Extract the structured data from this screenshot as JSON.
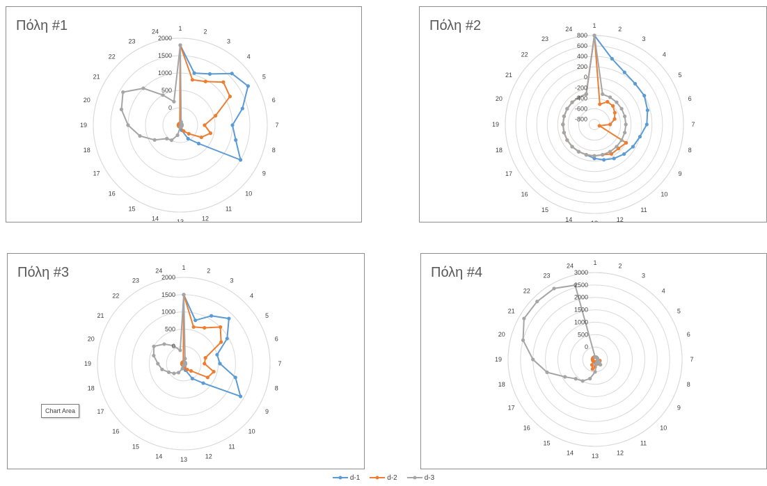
{
  "chart_data": [
    {
      "type": "radar",
      "title": "Πόλη #1",
      "categories": [
        "1",
        "2",
        "3",
        "4",
        "5",
        "6",
        "7",
        "8",
        "9",
        "10",
        "11",
        "12",
        "13",
        "14",
        "15",
        "16",
        "17",
        "18",
        "19",
        "20",
        "21",
        "22",
        "23",
        "24"
      ],
      "r_ticks": [
        "0",
        "500",
        "1000",
        "1500",
        "2000"
      ],
      "rlim": [
        -500,
        2000
      ],
      "grid": true,
      "series": [
        {
          "name": "d-1",
          "color": "#5b9bd5",
          "values": [
            1800,
            1050,
            1200,
            1600,
            1750,
            1350,
            1000,
            1150,
            1500,
            250,
            -50,
            -350,
            -450,
            -450,
            -450,
            -450,
            -450,
            -450,
            -450,
            -450,
            -450,
            -450,
            -450,
            -450
          ]
        },
        {
          "name": "d-2",
          "color": "#ed7d31",
          "values": [
            1800,
            850,
            950,
            1250,
            1150,
            550,
            200,
            400,
            200,
            -150,
            -300,
            -450,
            -450,
            -450,
            -450,
            -450,
            -450,
            -450,
            -450,
            -450,
            -450,
            -450,
            -450,
            -450
          ]
        },
        {
          "name": "d-3",
          "color": "#a5a5a5",
          "values": [
            1800,
            -400,
            -450,
            -450,
            -450,
            -450,
            -450,
            -450,
            -450,
            -450,
            -450,
            -450,
            -450,
            -200,
            0,
            50,
            350,
            700,
            1000,
            1250,
            1400,
            1000,
            500,
            200
          ]
        }
      ]
    },
    {
      "type": "radar",
      "title": "Πόλη #2",
      "categories": [
        "1",
        "2",
        "3",
        "4",
        "5",
        "6",
        "7",
        "8",
        "9",
        "10",
        "11",
        "12",
        "13",
        "14",
        "15",
        "16",
        "17",
        "18",
        "19",
        "20",
        "21",
        "22",
        "23",
        "24"
      ],
      "r_ticks": [
        "-800",
        "-600",
        "-400",
        "-200",
        "0",
        "200",
        "400",
        "600",
        "800"
      ],
      "rlim": [
        -900,
        800
      ],
      "grid": true,
      "series": [
        {
          "name": "d-1",
          "color": "#5b9bd5",
          "values": [
            800,
            400,
            250,
            200,
            200,
            150,
            100,
            0,
            -50,
            -100,
            -150,
            -200,
            -250,
            -300,
            -300,
            -300,
            -300,
            -300,
            -300,
            -300,
            -300,
            -300,
            -300,
            -300
          ]
        },
        {
          "name": "d-2",
          "color": "#ed7d31",
          "values": [
            800,
            -500,
            -400,
            -400,
            -450,
            -500,
            -600,
            -800,
            -200,
            -250,
            -250,
            -300,
            -300,
            -300,
            -300,
            -300,
            -300,
            -300,
            -300,
            -300,
            -300,
            -300,
            -300,
            -300
          ]
        },
        {
          "name": "d-3",
          "color": "#a5a5a5",
          "values": [
            800,
            -300,
            -300,
            -300,
            -300,
            -300,
            -300,
            -300,
            -300,
            -300,
            -300,
            -300,
            -300,
            -300,
            -300,
            -300,
            -300,
            -300,
            -300,
            -300,
            -300,
            -300,
            -300,
            -300
          ]
        }
      ]
    },
    {
      "type": "radar",
      "title": "Πόλη #3",
      "categories": [
        "1",
        "2",
        "3",
        "4",
        "5",
        "6",
        "7",
        "8",
        "9",
        "10",
        "11",
        "12",
        "13",
        "14",
        "15",
        "16",
        "17",
        "18",
        "19",
        "20",
        "21",
        "22",
        "23",
        "24"
      ],
      "r_ticks": [
        "0",
        "500",
        "1000",
        "1500",
        "2000"
      ],
      "rlim": [
        -500,
        2000
      ],
      "grid": true,
      "series": [
        {
          "name": "d-1",
          "color": "#5b9bd5",
          "values": [
            1500,
            800,
            1100,
            1350,
            950,
            500,
            550,
            1050,
            1400,
            300,
            0,
            -300,
            -400,
            -450,
            -450,
            -450,
            -450,
            -450,
            -450,
            -450,
            -450,
            -450,
            -450,
            -450
          ]
        },
        {
          "name": "d-2",
          "color": "#ed7d31",
          "values": [
            1500,
            600,
            700,
            1000,
            750,
            150,
            100,
            400,
            300,
            -200,
            -300,
            -400,
            -450,
            -450,
            -450,
            -450,
            -450,
            -450,
            -450,
            -450,
            -450,
            -450,
            -450,
            -450
          ]
        },
        {
          "name": "d-3",
          "color": "#a5a5a5",
          "values": [
            1500,
            -350,
            -450,
            -450,
            -450,
            -450,
            -450,
            -450,
            -450,
            -450,
            -450,
            -450,
            -450,
            -350,
            -200,
            -100,
            0,
            150,
            250,
            400,
            500,
            300,
            100,
            -100
          ]
        }
      ]
    },
    {
      "type": "radar",
      "title": "Πόλη #4",
      "categories": [
        "1",
        "2",
        "3",
        "4",
        "5",
        "6",
        "7",
        "8",
        "9",
        "10",
        "11",
        "12",
        "13",
        "14",
        "15",
        "16",
        "17",
        "18",
        "19",
        "20",
        "21",
        "22",
        "23",
        "24"
      ],
      "r_ticks": [
        "0",
        "500",
        "1000",
        "1500",
        "2000",
        "2500",
        "3000"
      ],
      "rlim": [
        -500,
        3000
      ],
      "grid": true,
      "series": [
        {
          "name": "d-1",
          "color": "#5b9bd5",
          "values": [
            -400,
            -400,
            -400,
            -400,
            -400,
            -400,
            -400,
            -300,
            -300,
            -200,
            -300,
            -400,
            -200,
            -400,
            -400,
            -400,
            -400,
            -400,
            -400,
            -400,
            -400,
            -400,
            -400,
            -400
          ]
        },
        {
          "name": "d-2",
          "color": "#ed7d31",
          "values": [
            -400,
            -400,
            -400,
            -400,
            -400,
            -400,
            -400,
            -300,
            -300,
            -200,
            -300,
            -400,
            -200,
            -100,
            -250,
            -400,
            -400,
            -400,
            -400,
            -400,
            -400,
            -400,
            -400,
            -400
          ]
        },
        {
          "name": "d-3",
          "color": "#a5a5a5",
          "values": [
            -400,
            -400,
            -400,
            -400,
            -400,
            -400,
            -400,
            -400,
            -300,
            -200,
            -350,
            -300,
            0,
            300,
            500,
            600,
            900,
            1500,
            2000,
            2500,
            2800,
            2800,
            2800,
            2600
          ]
        }
      ]
    }
  ],
  "panels": [
    {
      "title": "Πόλη #1"
    },
    {
      "title": "Πόλη #2"
    },
    {
      "title": "Πόλη #3"
    },
    {
      "title": "Πόλη #4"
    }
  ],
  "tooltip": {
    "text": "Chart Area"
  },
  "legend": [
    {
      "label": "d-1",
      "color": "#5b9bd5"
    },
    {
      "label": "d-2",
      "color": "#ed7d31"
    },
    {
      "label": "d-3",
      "color": "#a5a5a5"
    }
  ]
}
